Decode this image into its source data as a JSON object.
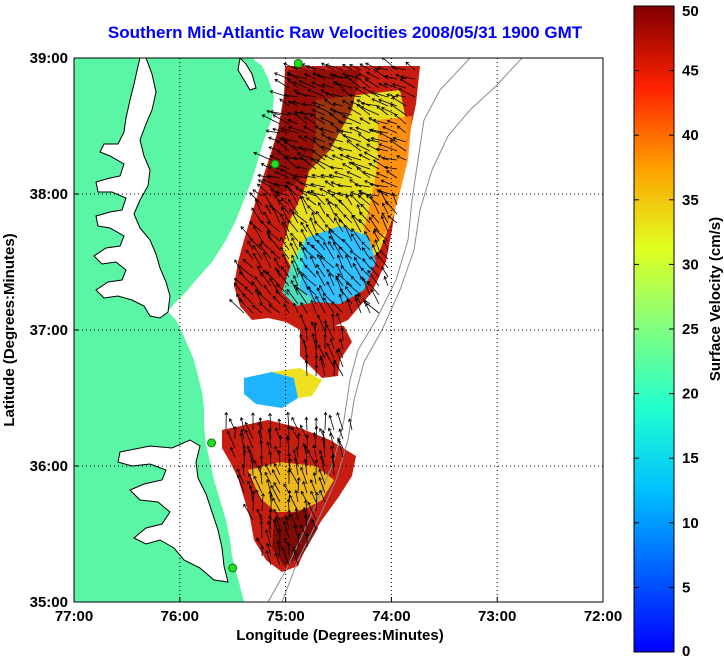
{
  "title": "Southern Mid-Atlantic Raw Velocities 2008/05/31 1900 GMT",
  "map": {
    "xlabel": "Longitude (Degrees:Minutes)",
    "ylabel": "Latitude (Degrees:Minutes)",
    "lon_range": [
      -77,
      -72
    ],
    "lat_range": [
      35,
      39
    ],
    "x_ticks": [
      {
        "value": -77,
        "label": "77:00"
      },
      {
        "value": -76,
        "label": "76:00"
      },
      {
        "value": -75,
        "label": "75:00"
      },
      {
        "value": -74,
        "label": "74:00"
      },
      {
        "value": -73,
        "label": "73:00"
      },
      {
        "value": -72,
        "label": "72:00"
      }
    ],
    "y_ticks": [
      {
        "value": 35,
        "label": "35:00"
      },
      {
        "value": 36,
        "label": "36:00"
      },
      {
        "value": 37,
        "label": "37:00"
      },
      {
        "value": 38,
        "label": "38:00"
      },
      {
        "value": 39,
        "label": "39:00"
      }
    ],
    "grid": "dotted",
    "colors": {
      "land": "#5af5a5",
      "water": "#ffffff",
      "coast": "#000000",
      "depth_contour": "#8c8c8c",
      "station": "#22dd22",
      "arrow": "#000000"
    }
  },
  "colorbar": {
    "label": "Surface Velocity (cm/s)",
    "range": [
      0,
      50
    ],
    "ticks": [
      {
        "value": 0,
        "label": "0"
      },
      {
        "value": 5,
        "label": "5"
      },
      {
        "value": 10,
        "label": "10"
      },
      {
        "value": 15,
        "label": "15"
      },
      {
        "value": 20,
        "label": "20"
      },
      {
        "value": 25,
        "label": "25"
      },
      {
        "value": 30,
        "label": "30"
      },
      {
        "value": 35,
        "label": "35"
      },
      {
        "value": 40,
        "label": "40"
      },
      {
        "value": 45,
        "label": "45"
      },
      {
        "value": 50,
        "label": "50"
      }
    ],
    "colormap": "jet"
  },
  "stations": [
    {
      "lon": -74.88,
      "lat": 38.96
    },
    {
      "lon": -75.1,
      "lat": 38.22
    },
    {
      "lon": -75.7,
      "lat": 36.17
    },
    {
      "lon": -75.5,
      "lat": 35.25
    }
  ]
}
